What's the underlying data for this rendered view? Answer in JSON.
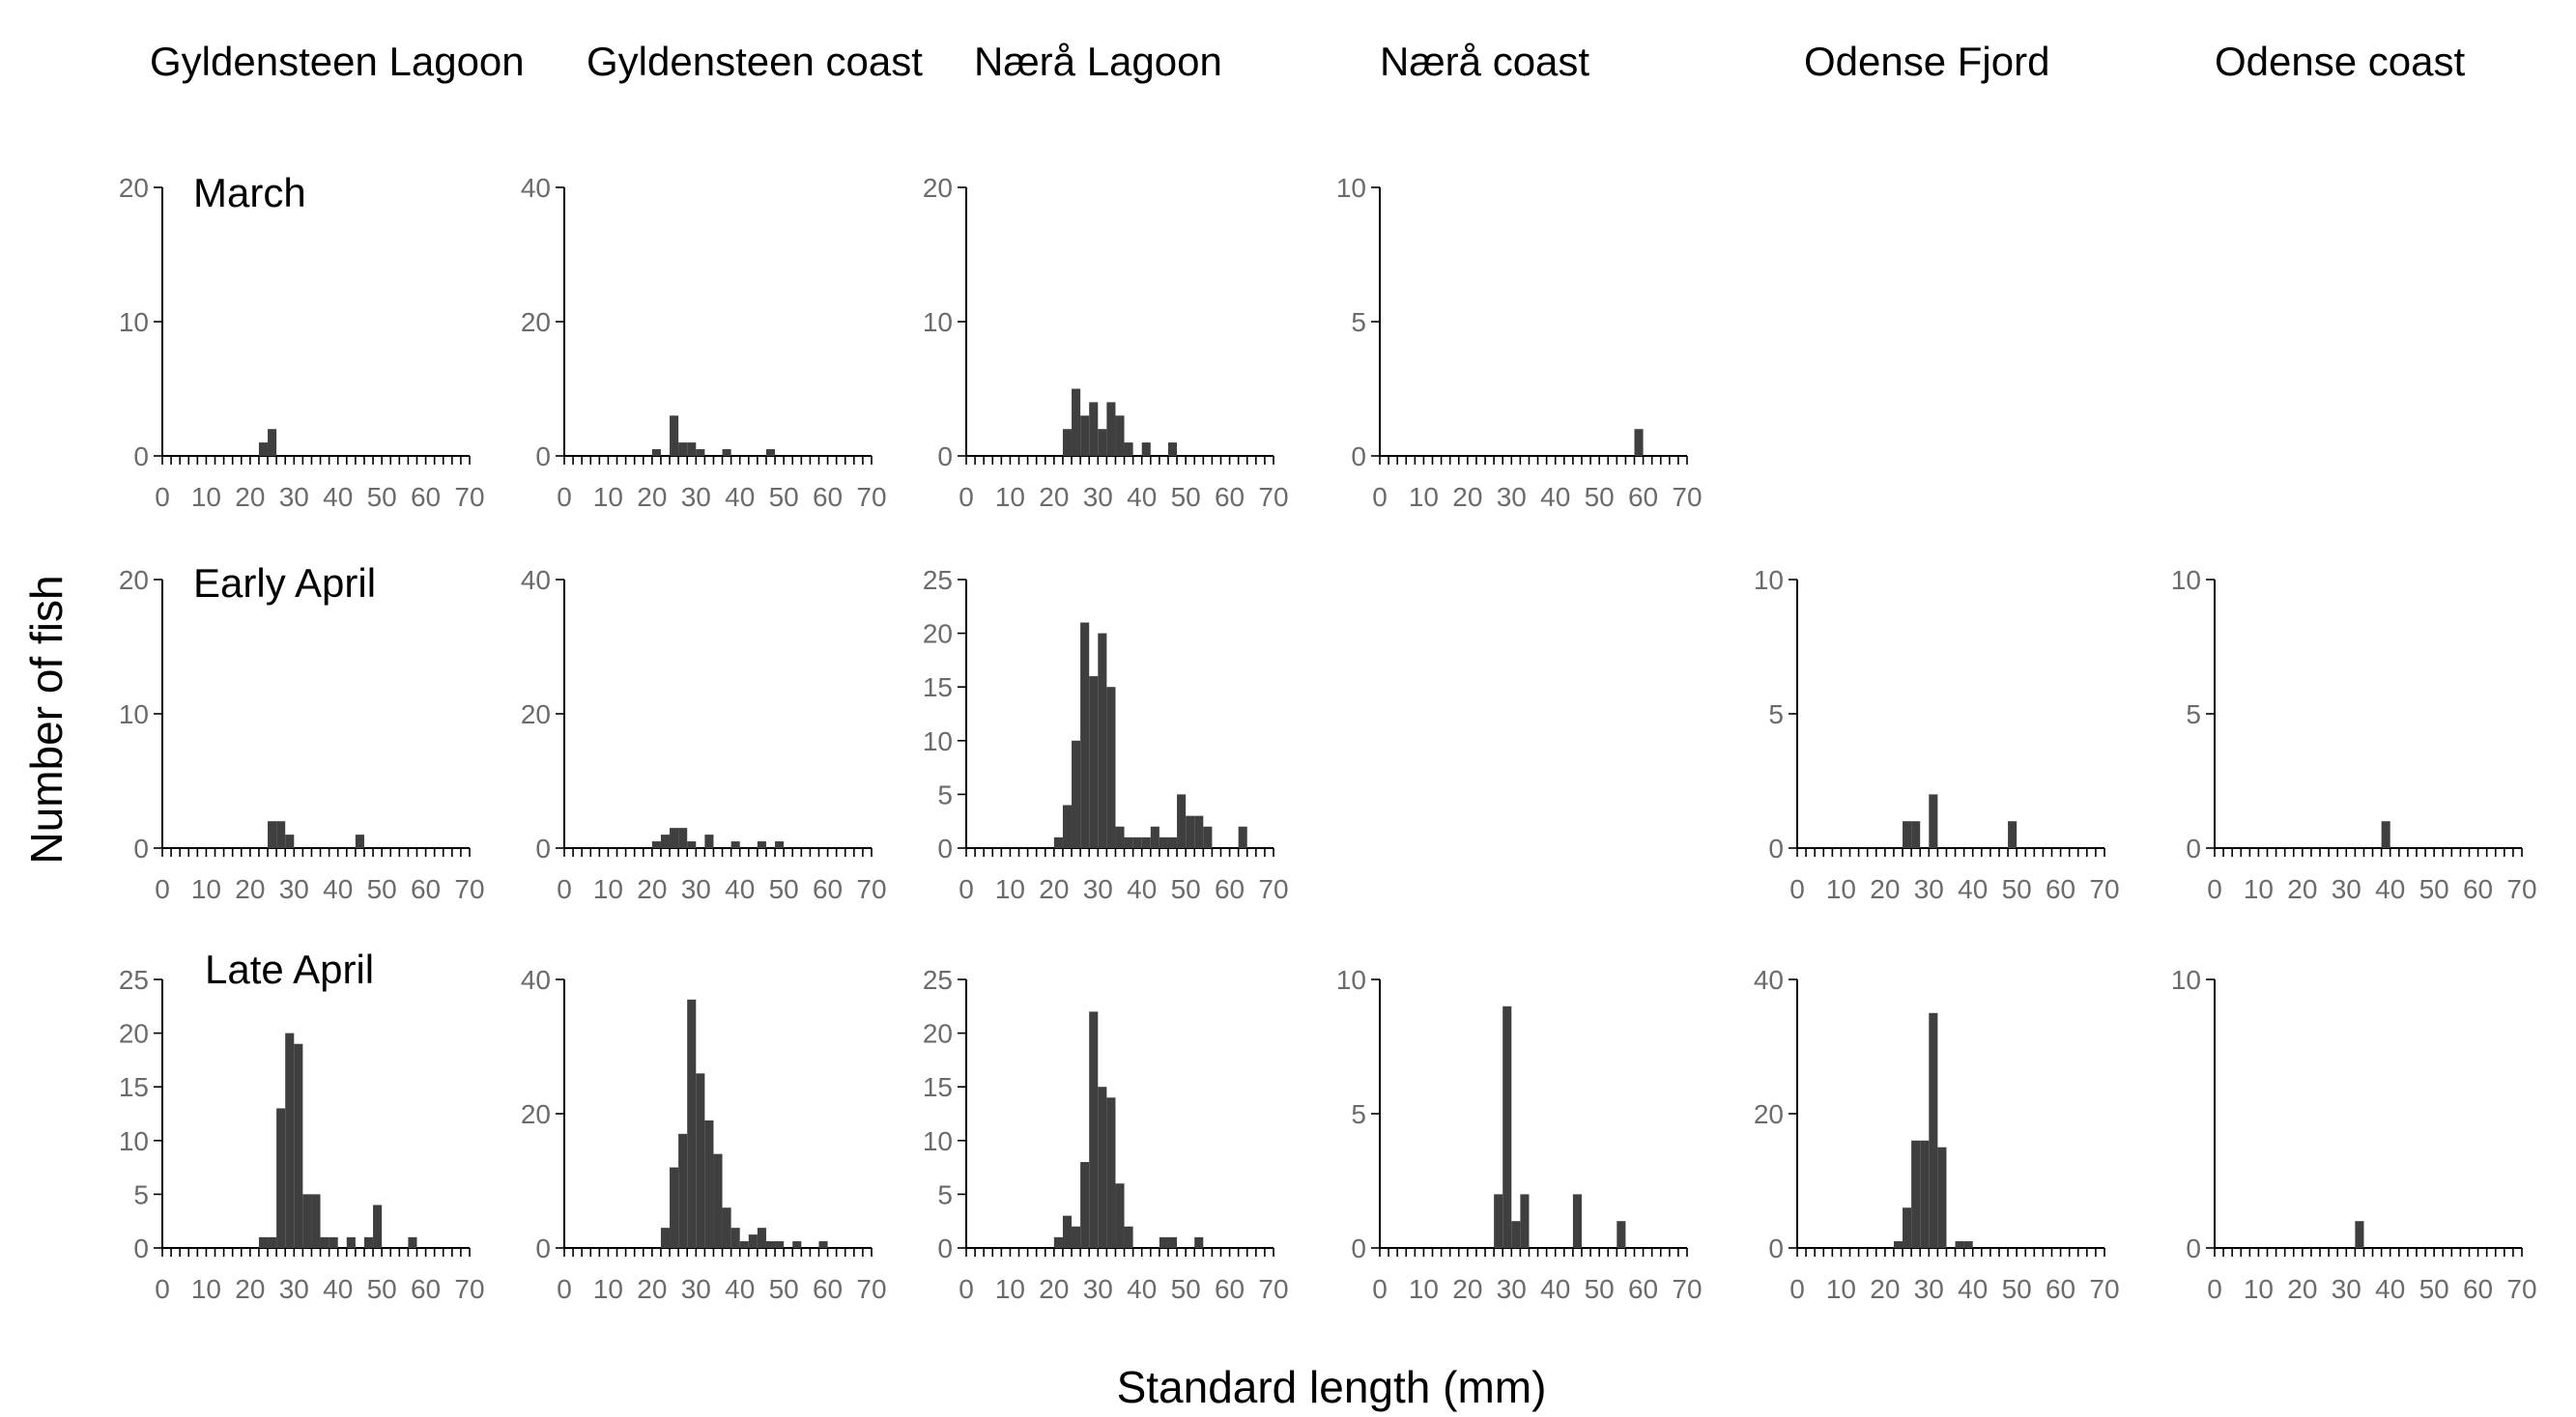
{
  "column_labels": [
    "Gyldensteen  Lagoon",
    "Gyldensteen coast",
    "Nærå Lagoon",
    "Nærå coast",
    "Odense Fjord",
    "Odense coast"
  ],
  "row_labels": [
    "March",
    "Early April",
    "Late April"
  ],
  "ylabel": "Number of fish",
  "xlabel": "Standard length (mm)",
  "colors": {
    "bar": "#3f3f3f",
    "axis": "#000000",
    "tick_label": "#6b6b6b"
  },
  "chart_data": [
    {
      "type": "bar",
      "site": "Gyldensteen  Lagoon",
      "period": "March",
      "bin_width_mm": 2,
      "xlim": [
        0,
        70
      ],
      "ylim": [
        0,
        20
      ],
      "yticks": [
        0,
        10,
        20
      ],
      "xticks": [
        0,
        10,
        20,
        30,
        40,
        50,
        60,
        70
      ],
      "bins": [
        22,
        24
      ],
      "values": [
        1,
        2
      ]
    },
    {
      "type": "bar",
      "site": "Gyldensteen coast",
      "period": "March",
      "bin_width_mm": 2,
      "xlim": [
        0,
        70
      ],
      "ylim": [
        0,
        40
      ],
      "yticks": [
        0,
        20,
        40
      ],
      "xticks": [
        0,
        10,
        20,
        30,
        40,
        50,
        60,
        70
      ],
      "bins": [
        20,
        24,
        26,
        28,
        30,
        36,
        46
      ],
      "values": [
        1,
        6,
        2,
        2,
        1,
        1,
        1
      ]
    },
    {
      "type": "bar",
      "site": "Nærå Lagoon",
      "period": "March",
      "bin_width_mm": 2,
      "xlim": [
        0,
        70
      ],
      "ylim": [
        0,
        20
      ],
      "yticks": [
        0,
        10,
        20
      ],
      "xticks": [
        0,
        10,
        20,
        30,
        40,
        50,
        60,
        70
      ],
      "bins": [
        22,
        24,
        26,
        28,
        30,
        32,
        34,
        36,
        40,
        46
      ],
      "values": [
        2,
        5,
        3,
        4,
        2,
        4,
        3,
        1,
        1,
        1
      ]
    },
    {
      "type": "bar",
      "site": "Nærå coast",
      "period": "March",
      "bin_width_mm": 2,
      "xlim": [
        0,
        70
      ],
      "ylim": [
        0,
        10
      ],
      "yticks": [
        0,
        5,
        10
      ],
      "xticks": [
        0,
        10,
        20,
        30,
        40,
        50,
        60,
        70
      ],
      "bins": [
        58
      ],
      "values": [
        1
      ]
    },
    {
      "type": "bar",
      "site": "Gyldensteen  Lagoon",
      "period": "Early April",
      "bin_width_mm": 2,
      "xlim": [
        0,
        70
      ],
      "ylim": [
        0,
        20
      ],
      "yticks": [
        0,
        10,
        20
      ],
      "xticks": [
        0,
        10,
        20,
        30,
        40,
        50,
        60,
        70
      ],
      "bins": [
        24,
        26,
        28,
        44
      ],
      "values": [
        2,
        2,
        1,
        1
      ]
    },
    {
      "type": "bar",
      "site": "Gyldensteen coast",
      "period": "Early April",
      "bin_width_mm": 2,
      "xlim": [
        0,
        70
      ],
      "ylim": [
        0,
        40
      ],
      "yticks": [
        0,
        20,
        40
      ],
      "xticks": [
        0,
        10,
        20,
        30,
        40,
        50,
        60,
        70
      ],
      "bins": [
        20,
        22,
        24,
        26,
        28,
        32,
        38,
        44,
        48
      ],
      "values": [
        1,
        2,
        3,
        3,
        1,
        2,
        1,
        1,
        1
      ]
    },
    {
      "type": "bar",
      "site": "Nærå Lagoon",
      "period": "Early April",
      "bin_width_mm": 2,
      "xlim": [
        0,
        70
      ],
      "ylim": [
        0,
        25
      ],
      "yticks": [
        0,
        5,
        10,
        15,
        20,
        25
      ],
      "xticks": [
        0,
        10,
        20,
        30,
        40,
        50,
        60,
        70
      ],
      "bins": [
        20,
        22,
        24,
        26,
        28,
        30,
        32,
        34,
        36,
        38,
        40,
        42,
        44,
        46,
        48,
        50,
        52,
        54,
        56,
        62
      ],
      "values": [
        1,
        4,
        10,
        21,
        16,
        20,
        15,
        2,
        1,
        1,
        1,
        2,
        1,
        1,
        5,
        3,
        3,
        2,
        0,
        2
      ]
    },
    {
      "type": "bar",
      "site": "Odense Fjord",
      "period": "Early April",
      "bin_width_mm": 2,
      "xlim": [
        0,
        70
      ],
      "ylim": [
        0,
        10
      ],
      "yticks": [
        0,
        5,
        10
      ],
      "xticks": [
        0,
        10,
        20,
        30,
        40,
        50,
        60,
        70
      ],
      "bins": [
        24,
        26,
        30,
        48
      ],
      "values": [
        1,
        1,
        2,
        1
      ]
    },
    {
      "type": "bar",
      "site": "Odense coast",
      "period": "Early April",
      "bin_width_mm": 2,
      "xlim": [
        0,
        70
      ],
      "ylim": [
        0,
        10
      ],
      "yticks": [
        0,
        5,
        10
      ],
      "xticks": [
        0,
        10,
        20,
        30,
        40,
        50,
        60,
        70
      ],
      "bins": [
        38
      ],
      "values": [
        1
      ]
    },
    {
      "type": "bar",
      "site": "Gyldensteen  Lagoon",
      "period": "Late April",
      "bin_width_mm": 2,
      "xlim": [
        0,
        70
      ],
      "ylim": [
        0,
        25
      ],
      "yticks": [
        0,
        5,
        10,
        15,
        20,
        25
      ],
      "xticks": [
        0,
        10,
        20,
        30,
        40,
        50,
        60,
        70
      ],
      "bins": [
        22,
        24,
        26,
        28,
        30,
        32,
        34,
        36,
        38,
        42,
        46,
        48,
        56
      ],
      "values": [
        1,
        1,
        13,
        20,
        19,
        5,
        5,
        1,
        1,
        1,
        1,
        4,
        1
      ]
    },
    {
      "type": "bar",
      "site": "Gyldensteen coast",
      "period": "Late April",
      "bin_width_mm": 2,
      "xlim": [
        0,
        70
      ],
      "ylim": [
        0,
        40
      ],
      "yticks": [
        0,
        20,
        40
      ],
      "xticks": [
        0,
        10,
        20,
        30,
        40,
        50,
        60,
        70
      ],
      "bins": [
        22,
        24,
        26,
        28,
        30,
        32,
        34,
        36,
        38,
        40,
        42,
        44,
        46,
        48,
        52,
        58
      ],
      "values": [
        3,
        12,
        17,
        37,
        26,
        19,
        14,
        6,
        3,
        1,
        2,
        3,
        1,
        1,
        1,
        1
      ]
    },
    {
      "type": "bar",
      "site": "Nærå Lagoon",
      "period": "Late April",
      "bin_width_mm": 2,
      "xlim": [
        0,
        70
      ],
      "ylim": [
        0,
        25
      ],
      "yticks": [
        0,
        5,
        10,
        15,
        20,
        25
      ],
      "xticks": [
        0,
        10,
        20,
        30,
        40,
        50,
        60,
        70
      ],
      "bins": [
        20,
        22,
        24,
        26,
        28,
        30,
        32,
        34,
        36,
        44,
        46,
        52
      ],
      "values": [
        1,
        3,
        2,
        8,
        22,
        15,
        14,
        6,
        2,
        1,
        1,
        1
      ]
    },
    {
      "type": "bar",
      "site": "Nærå coast",
      "period": "Late April",
      "bin_width_mm": 2,
      "xlim": [
        0,
        70
      ],
      "ylim": [
        0,
        10
      ],
      "yticks": [
        0,
        5,
        10
      ],
      "xticks": [
        0,
        10,
        20,
        30,
        40,
        50,
        60,
        70
      ],
      "bins": [
        26,
        28,
        30,
        32,
        44,
        54
      ],
      "values": [
        2,
        9,
        1,
        2,
        2,
        1
      ]
    },
    {
      "type": "bar",
      "site": "Odense Fjord",
      "period": "Late April",
      "bin_width_mm": 2,
      "xlim": [
        0,
        70
      ],
      "ylim": [
        0,
        40
      ],
      "yticks": [
        0,
        20,
        40
      ],
      "xticks": [
        0,
        10,
        20,
        30,
        40,
        50,
        60,
        70
      ],
      "bins": [
        22,
        24,
        26,
        28,
        30,
        32,
        36,
        38
      ],
      "values": [
        1,
        6,
        16,
        16,
        35,
        15,
        1,
        1
      ]
    },
    {
      "type": "bar",
      "site": "Odense coast",
      "period": "Late April",
      "bin_width_mm": 2,
      "xlim": [
        0,
        70
      ],
      "ylim": [
        0,
        10
      ],
      "yticks": [
        0,
        10
      ],
      "xticks": [
        0,
        10,
        20,
        30,
        40,
        50,
        60,
        70
      ],
      "bins": [
        32
      ],
      "values": [
        1
      ]
    }
  ]
}
